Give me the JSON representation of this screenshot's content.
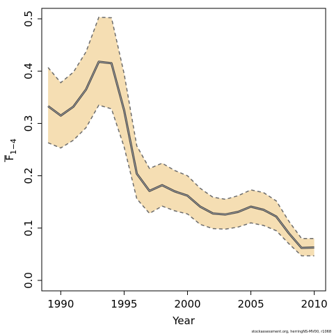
{
  "chart_data": {
    "type": "line",
    "title": "",
    "xlabel": "Year",
    "ylabel_main": "F",
    "ylabel_subscript": "1−4",
    "xlim": [
      1988.5,
      2010.9
    ],
    "ylim": [
      -0.02,
      0.52
    ],
    "x_ticks": [
      1990,
      1995,
      2000,
      2005,
      2010
    ],
    "y_ticks": [
      0.0,
      0.1,
      0.2,
      0.3,
      0.4,
      0.5
    ],
    "y_tick_labels": [
      "0.0",
      "0.1",
      "0.2",
      "0.3",
      "0.4",
      "0.5"
    ],
    "grid": false,
    "band_fill": "#F5DEB3",
    "band_edge_color": "#6b6b6b",
    "line_color": "#444444",
    "years": [
      1989,
      1990,
      1991,
      1992,
      1993,
      1994,
      1995,
      1996,
      1997,
      1998,
      1999,
      2000,
      2001,
      2002,
      2003,
      2004,
      2005,
      2006,
      2007,
      2008,
      2009,
      2010
    ],
    "series": [
      {
        "values": [
          0.333,
          0.315,
          0.332,
          0.365,
          0.418,
          0.415,
          0.325,
          0.204,
          0.171,
          0.182,
          0.17,
          0.162,
          0.141,
          0.128,
          0.126,
          0.131,
          0.141,
          0.135,
          0.122,
          0.09,
          0.062,
          0.063
        ]
      },
      {
        "values": [
          0.263,
          0.253,
          0.268,
          0.292,
          0.335,
          0.328,
          0.255,
          0.156,
          0.128,
          0.142,
          0.133,
          0.127,
          0.107,
          0.099,
          0.098,
          0.102,
          0.11,
          0.105,
          0.095,
          0.07,
          0.047,
          0.047
        ]
      },
      {
        "values": [
          0.407,
          0.378,
          0.398,
          0.437,
          0.503,
          0.502,
          0.395,
          0.257,
          0.214,
          0.224,
          0.21,
          0.2,
          0.176,
          0.159,
          0.155,
          0.162,
          0.173,
          0.168,
          0.152,
          0.113,
          0.08,
          0.08
        ]
      }
    ]
  },
  "footer": {
    "credit": "stockassessment.org, herringNS-MV00, r1068"
  }
}
